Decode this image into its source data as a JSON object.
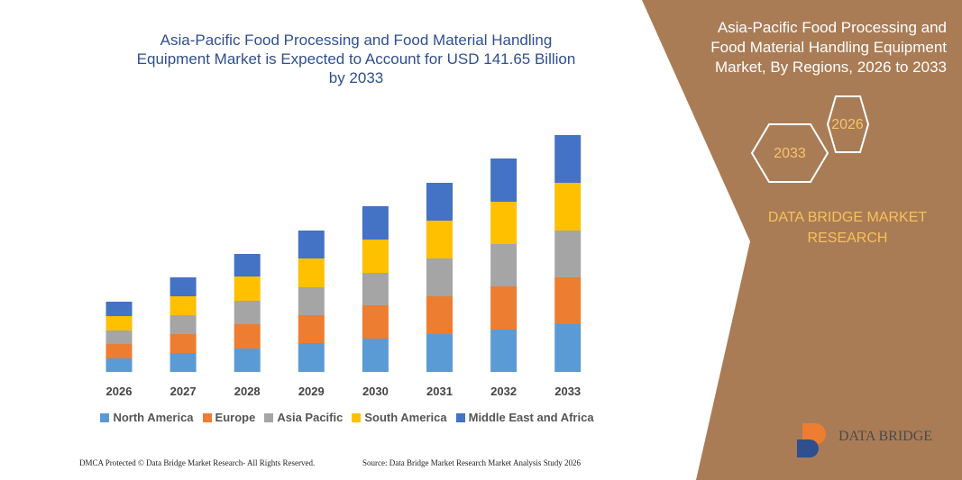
{
  "chart_data": {
    "type": "stacked-bar",
    "title": "Asia-Pacific Food Processing and Food Material Handling Equipment Market is Expected to Account for USD 141.65 Billion by 2033",
    "categories": [
      "2026",
      "2027",
      "2028",
      "2029",
      "2030",
      "2031",
      "2032",
      "2033"
    ],
    "series": [
      {
        "name": "North America",
        "color": "#5b9bd5",
        "values": [
          15,
          21,
          26,
          32,
          37,
          42,
          47,
          53
        ]
      },
      {
        "name": "Europe",
        "color": "#ed7d31",
        "values": [
          16,
          21,
          27,
          31,
          37,
          42,
          48,
          52
        ]
      },
      {
        "name": "Asia Pacific",
        "color": "#a5a5a5",
        "values": [
          15,
          21,
          26,
          31,
          36,
          42,
          47,
          52
        ]
      },
      {
        "name": "South America",
        "color": "#ffc000",
        "values": [
          16,
          21,
          27,
          32,
          37,
          42,
          47,
          53
        ]
      },
      {
        "name": "Middle East and Africa",
        "color": "#4472c4",
        "values": [
          16,
          21,
          25,
          31,
          37,
          42,
          48,
          53
        ]
      }
    ]
  },
  "panel": {
    "title": "Asia-Pacific Food Processing and Food Material Handling Equipment Market, By Regions, 2026 to 2033",
    "hexagons": [
      "2026",
      "2033"
    ],
    "brand": "DATA BRIDGE MARKET RESEARCH",
    "logo": "DATA BRIDGE"
  },
  "footer": {
    "left": "DMCA Protected © Data Bridge Market Research- All Rights Reserved.",
    "right": "Source: Data Bridge Market Research Market Analysis Study 2026"
  }
}
